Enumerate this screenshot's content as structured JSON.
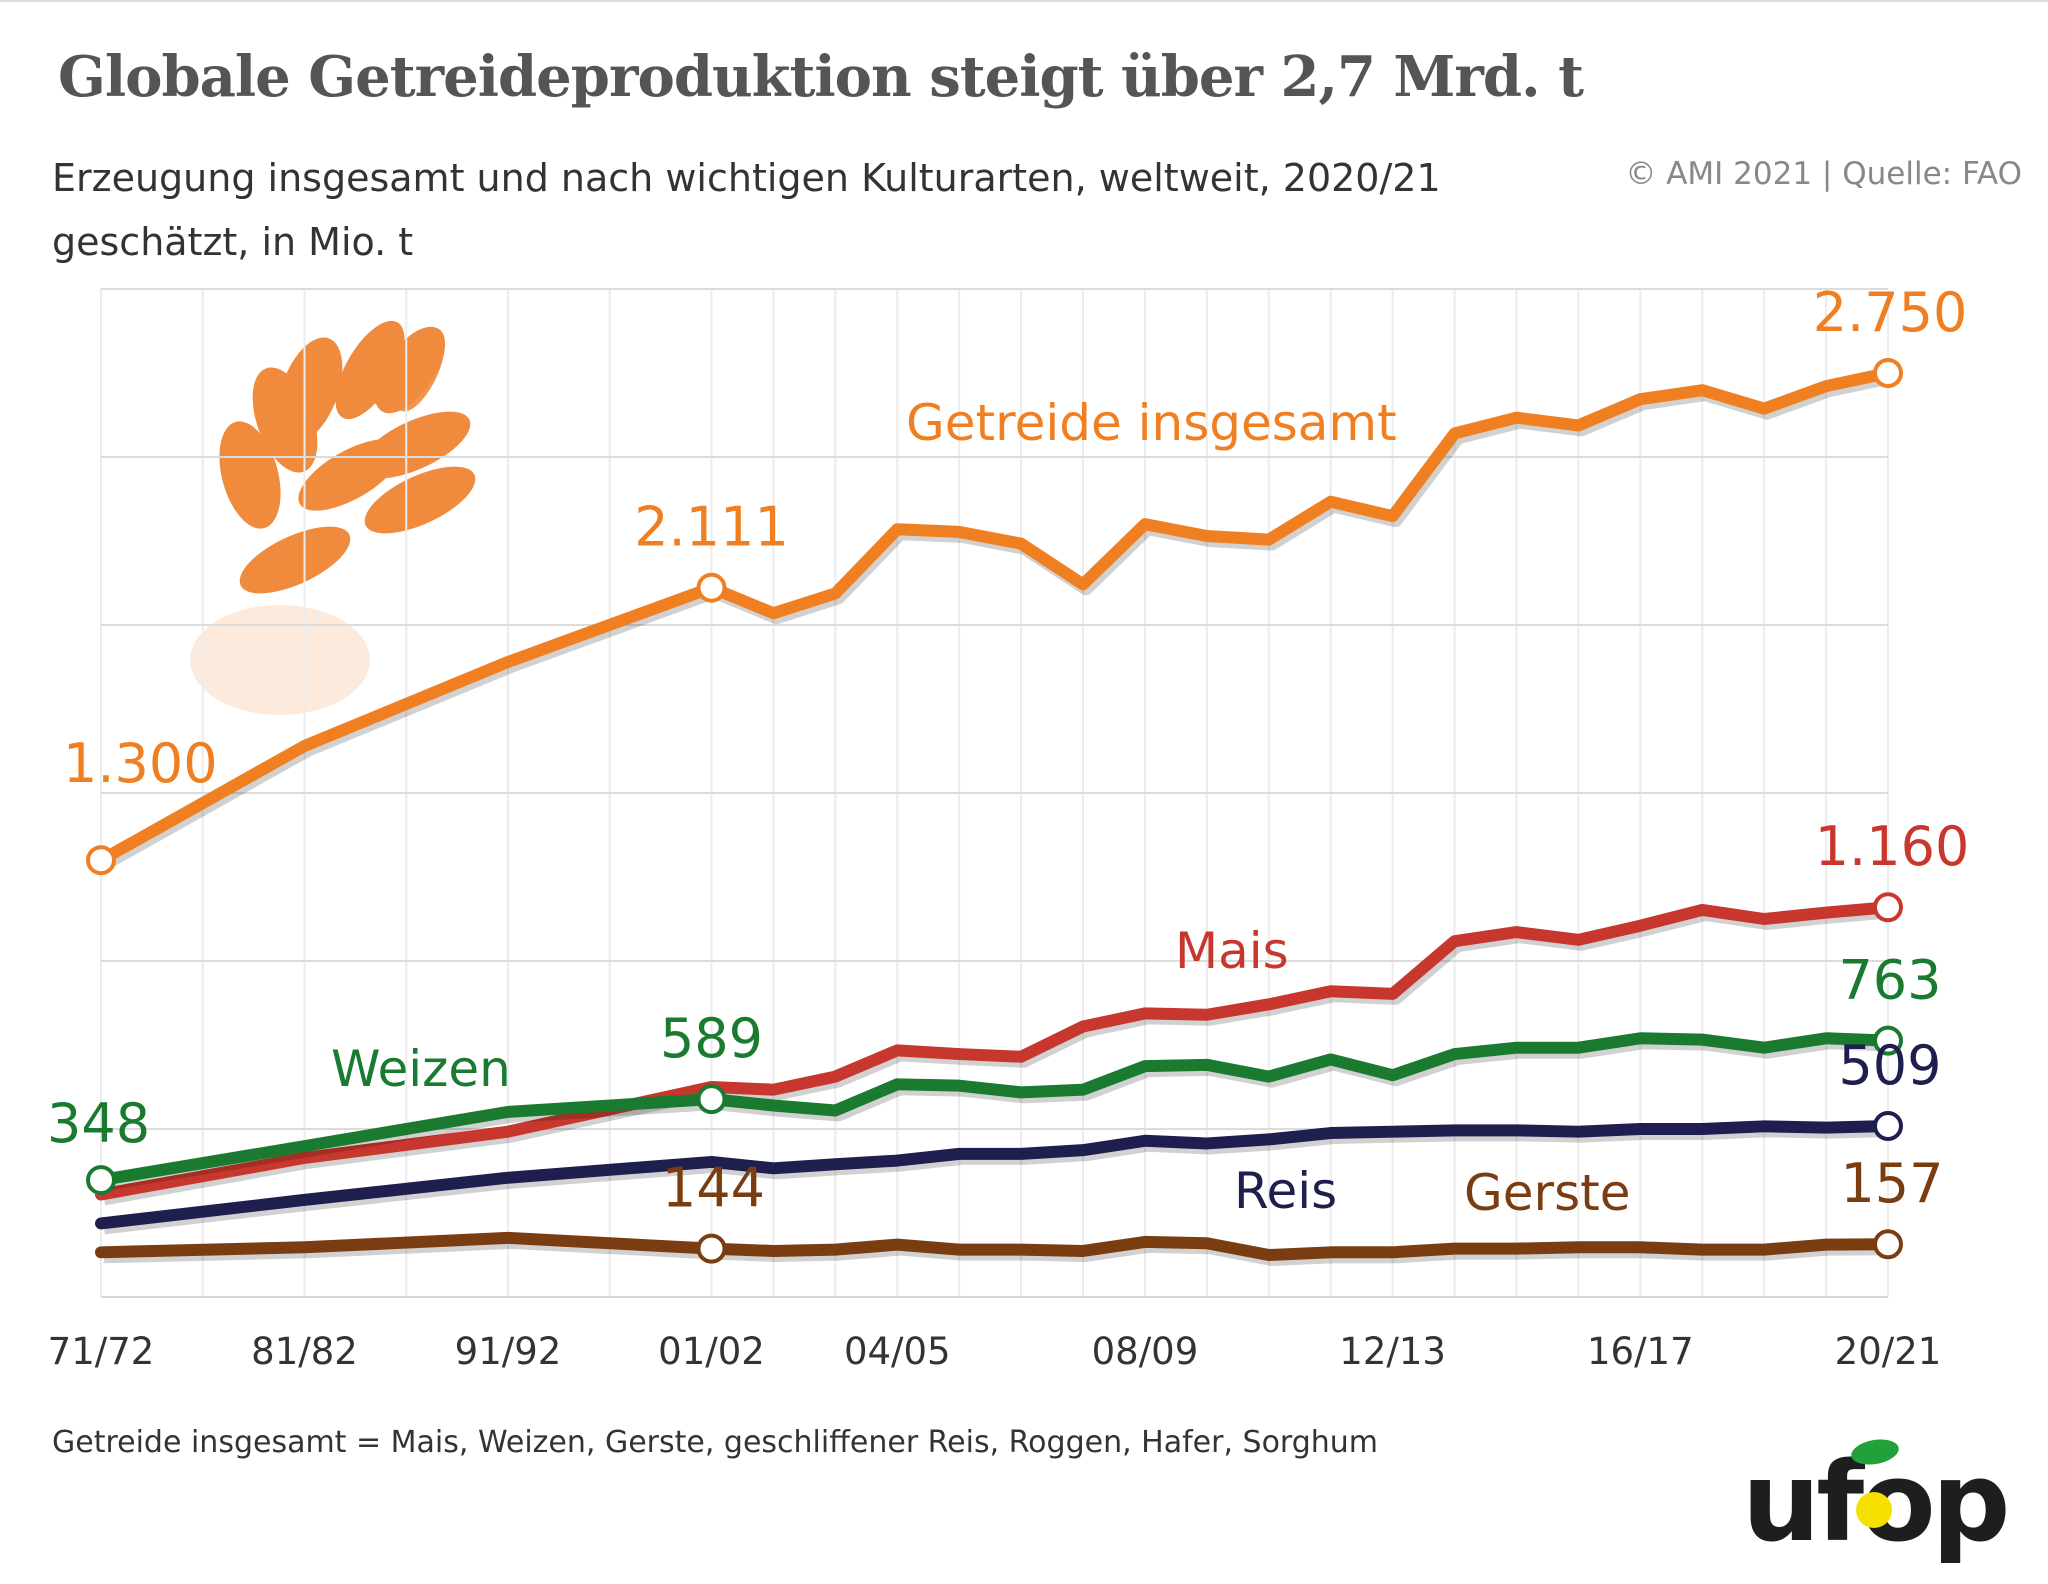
{
  "title": "Globale Getreideproduktion steigt über 2,7 Mrd. t",
  "subtitle": "Erzeugung insgesamt und nach wichtigen Kulturarten, weltweit, 2020/21 geschätzt, in Mio. t",
  "source": "© AMI 2021 | Quelle: FAO",
  "footnote": "Getreide insgesamt = Mais, Weizen, Gerste, geschliffener Reis, Roggen, Hafer, Sorghum",
  "logo_text": "ufop",
  "chart_data": {
    "type": "line",
    "title": "Globale Getreideproduktion steigt über 2,7 Mrd. t",
    "xlabel": "",
    "ylabel": "",
    "ylim": [
      0,
      3000
    ],
    "y_gridlines": [
      500,
      1000,
      1500,
      2000,
      2500,
      3000
    ],
    "grid": true,
    "legend": "inline labels",
    "categories": [
      "71/72",
      "81/82",
      "91/92",
      "01/02",
      "02/03",
      "03/04",
      "04/05",
      "05/06",
      "06/07",
      "07/08",
      "08/09",
      "09/10",
      "10/11",
      "11/12",
      "12/13",
      "13/14",
      "14/15",
      "15/16",
      "16/17",
      "17/18",
      "18/19",
      "19/20",
      "20/21"
    ],
    "tick_labels": [
      "71/72",
      "81/82",
      "91/92",
      "01/02",
      "04/05",
      "08/09",
      "12/13",
      "16/17",
      "20/21"
    ],
    "series": [
      {
        "name": "Getreide insgesamt",
        "color": "#f07f22",
        "values": [
          1300,
          1640,
          1890,
          2111,
          2035,
          2094,
          2285,
          2277,
          2242,
          2121,
          2300,
          2265,
          2254,
          2367,
          2324,
          2570,
          2617,
          2594,
          2672,
          2699,
          2644,
          2711,
          2750
        ],
        "labeled_points": [
          {
            "index": 0,
            "label": "1.300"
          },
          {
            "index": 3,
            "label": "2.111"
          },
          {
            "index": 22,
            "label": "2.750"
          }
        ]
      },
      {
        "name": "Mais",
        "color": "#c8372d",
        "values": [
          305,
          414,
          492,
          625,
          617,
          656,
          734,
          723,
          715,
          805,
          844,
          840,
          871,
          910,
          902,
          1059,
          1086,
          1063,
          1105,
          1152,
          1125,
          1144,
          1160
        ],
        "labeled_points": [
          {
            "index": 22,
            "label": "1.160"
          }
        ]
      },
      {
        "name": "Weizen",
        "color": "#1a7a30",
        "values": [
          348,
          449,
          551,
          589,
          570,
          555,
          633,
          629,
          609,
          617,
          687,
          691,
          656,
          707,
          660,
          723,
          742,
          742,
          770,
          766,
          742,
          770,
          763
        ],
        "labeled_points": [
          {
            "index": 0,
            "label": "348"
          },
          {
            "index": 3,
            "label": "589"
          },
          {
            "index": 22,
            "label": "763"
          }
        ]
      },
      {
        "name": "Reis",
        "color": "#1f1f4f",
        "values": [
          219,
          289,
          355,
          402,
          383,
          395,
          406,
          426,
          426,
          437,
          465,
          457,
          469,
          488,
          492,
          496,
          496,
          492,
          500,
          500,
          508,
          504,
          509
        ],
        "labeled_points": [
          {
            "index": 22,
            "label": "509"
          }
        ]
      },
      {
        "name": "Gerste",
        "color": "#7a3d12",
        "values": [
          133,
          148,
          176,
          144,
          137,
          141,
          156,
          141,
          141,
          137,
          164,
          160,
          125,
          133,
          133,
          144,
          144,
          148,
          148,
          141,
          141,
          156,
          157
        ],
        "labeled_points": [
          {
            "index": 3,
            "label": "144"
          },
          {
            "index": 22,
            "label": "157"
          }
        ]
      }
    ]
  }
}
